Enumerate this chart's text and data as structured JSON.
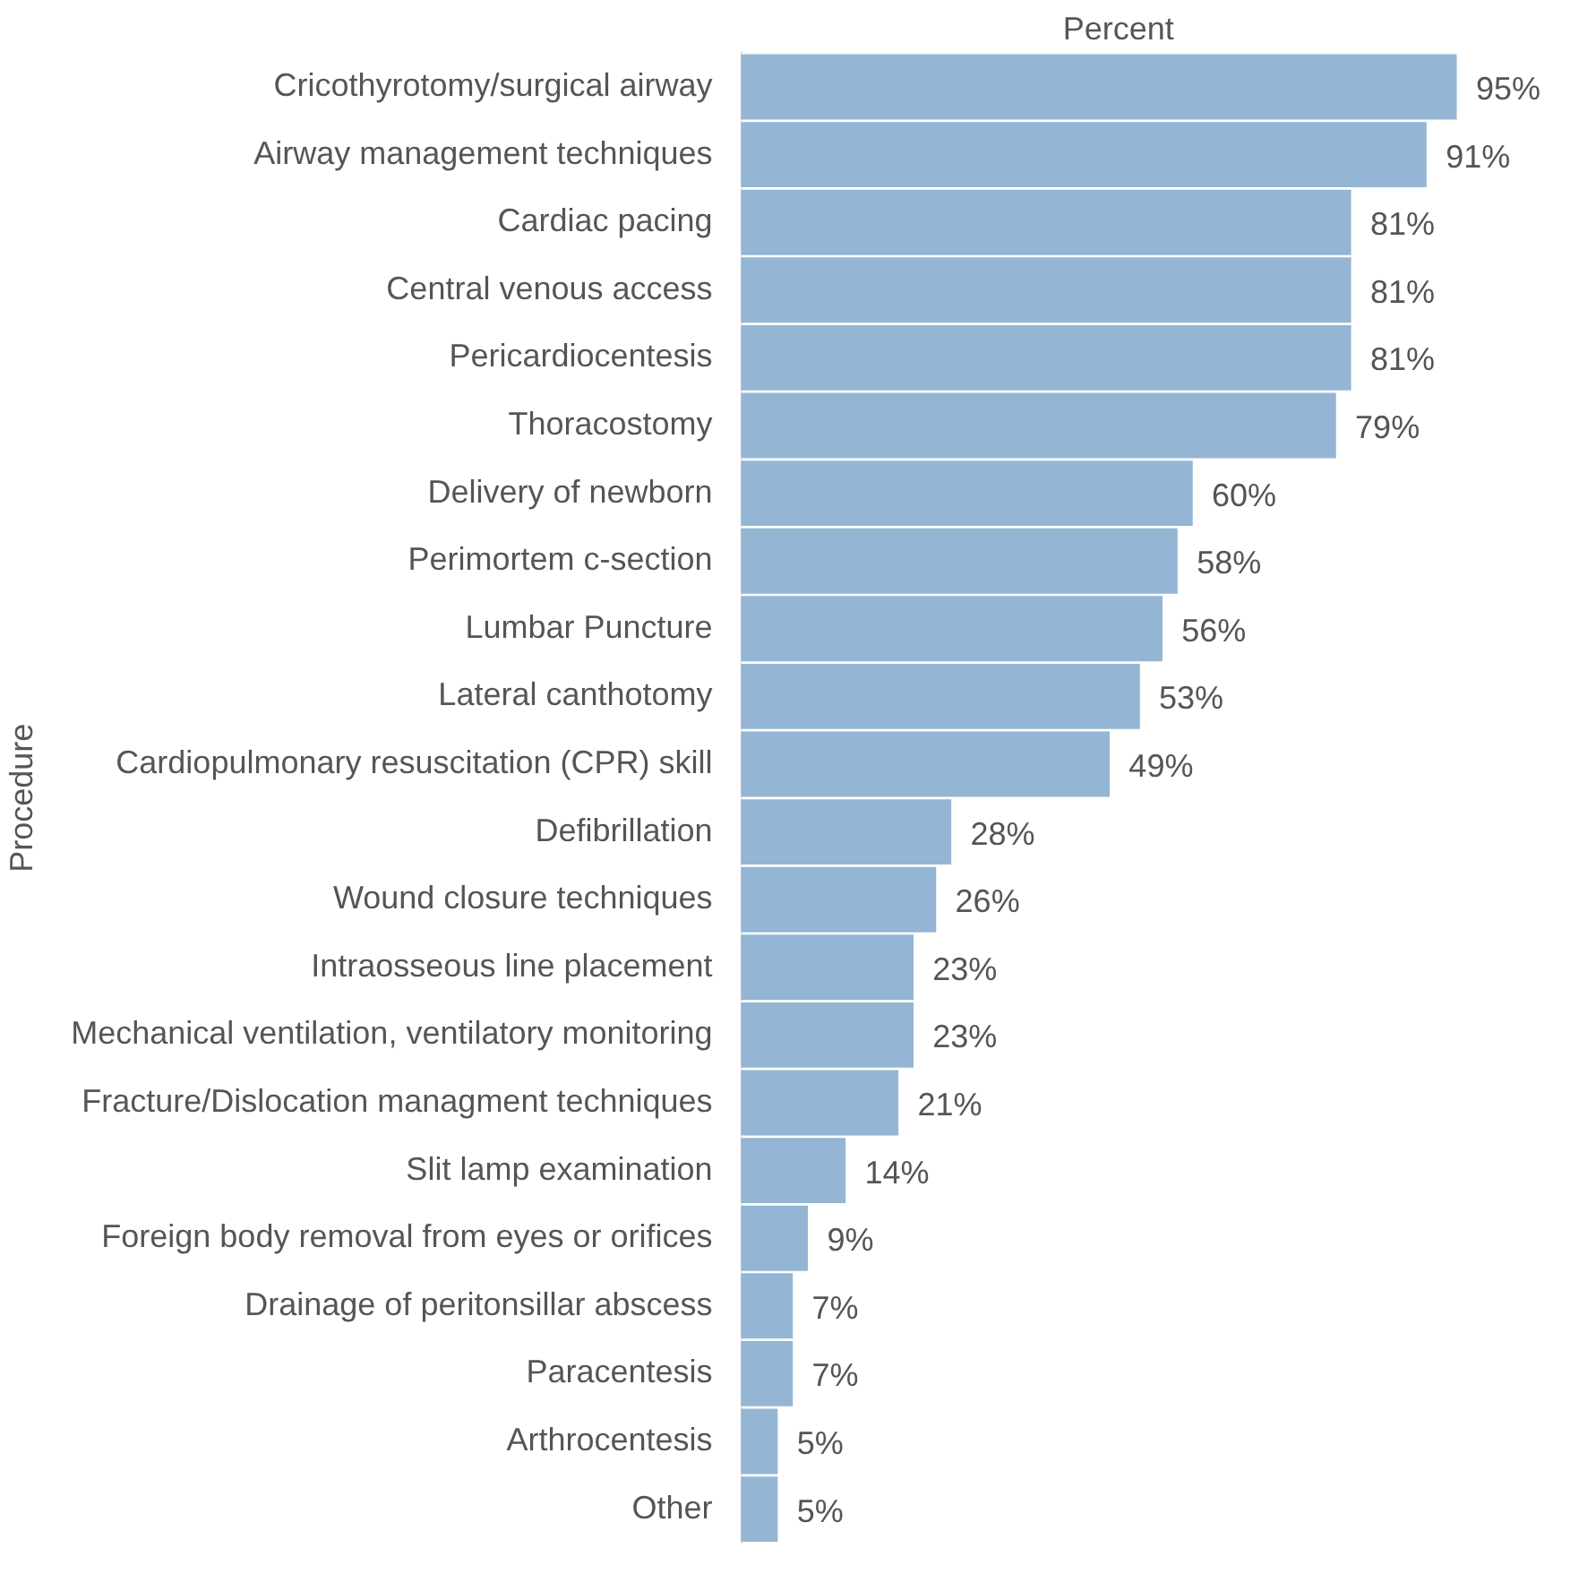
{
  "chart_data": {
    "type": "bar",
    "orientation": "horizontal",
    "xlabel": "Percent",
    "ylabel": "Procedure",
    "color": "#94b6d4",
    "tick_labels": "y",
    "legend": false,
    "grid": false,
    "categories": [
      "Cricothyrotomy/surgical airway",
      "Airway management techniques",
      "Cardiac pacing",
      "Central venous access",
      "Pericardiocentesis",
      "Thoracostomy",
      "Delivery of newborn",
      "Perimortem c-section",
      "Lumbar Puncture",
      "Lateral canthotomy",
      "Cardiopulmonary resuscitation (CPR) skill",
      "Defibrillation",
      "Wound closure techniques",
      "Intraosseous line placement",
      "Mechanical ventilation, ventilatory monitoring",
      "Fracture/Dislocation managment techniques",
      "Slit lamp examination",
      "Foreign body removal from eyes or orifices",
      "Drainage of peritonsillar abscess",
      "Paracentesis",
      "Arthrocentesis",
      "Other"
    ],
    "values": [
      95,
      91,
      81,
      81,
      81,
      79,
      60,
      58,
      56,
      53,
      49,
      28,
      26,
      23,
      23,
      21,
      14,
      9,
      7,
      7,
      5,
      5
    ],
    "value_labels": [
      "95%",
      "91%",
      "81%",
      "81%",
      "81%",
      "79%",
      "60%",
      "58%",
      "56%",
      "53%",
      "49%",
      "28%",
      "26%",
      "23%",
      "23%",
      "21%",
      "14%",
      "9%",
      "7%",
      "7%",
      "5%",
      "5%"
    ]
  }
}
